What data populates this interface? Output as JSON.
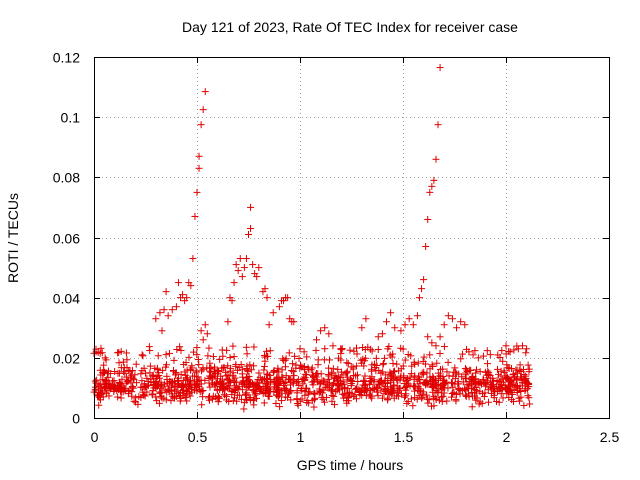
{
  "chart_data": {
    "type": "scatter",
    "title": "Day 121 of 2023, Rate Of TEC Index for receiver case",
    "xlabel": "GPS time / hours",
    "ylabel": "ROTI / TECUs",
    "xlim": [
      0,
      2.5
    ],
    "ylim": [
      0,
      0.12
    ],
    "xticks": [
      0,
      0.5,
      1,
      1.5,
      2,
      2.5
    ],
    "xtick_labels": [
      "0",
      "0.5",
      "1",
      "1.5",
      "2",
      "2.5"
    ],
    "yticks": [
      0,
      0.02,
      0.04,
      0.06,
      0.08,
      0.1,
      0.12
    ],
    "ytick_labels": [
      "0",
      "0.02",
      "0.04",
      "0.06",
      "0.08",
      "0.1",
      "0.12"
    ],
    "grid": true,
    "marker": "plus",
    "color": "#e00000",
    "series": [
      {
        "points": [
          [
            0.0,
            0.0215
          ],
          [
            0.01,
            0.022
          ],
          [
            0.02,
            0.0218
          ],
          [
            0.03,
            0.0215
          ],
          [
            0.04,
            0.0217
          ],
          [
            0.3,
            0.033
          ],
          [
            0.32,
            0.035
          ],
          [
            0.33,
            0.029
          ],
          [
            0.34,
            0.036
          ],
          [
            0.35,
            0.042
          ],
          [
            0.36,
            0.034
          ],
          [
            0.38,
            0.036
          ],
          [
            0.4,
            0.037
          ],
          [
            0.41,
            0.045
          ],
          [
            0.42,
            0.04
          ],
          [
            0.43,
            0.041
          ],
          [
            0.44,
            0.039
          ],
          [
            0.45,
            0.04
          ],
          [
            0.46,
            0.045
          ],
          [
            0.47,
            0.044
          ],
          [
            0.48,
            0.053
          ],
          [
            0.49,
            0.067
          ],
          [
            0.5,
            0.075
          ],
          [
            0.51,
            0.083
          ],
          [
            0.51,
            0.087
          ],
          [
            0.52,
            0.0975
          ],
          [
            0.53,
            0.1025
          ],
          [
            0.54,
            0.1085
          ],
          [
            0.52,
            0.029
          ],
          [
            0.53,
            0.026
          ],
          [
            0.54,
            0.031
          ],
          [
            0.55,
            0.028
          ],
          [
            0.65,
            0.032
          ],
          [
            0.66,
            0.04
          ],
          [
            0.67,
            0.039
          ],
          [
            0.68,
            0.045
          ],
          [
            0.69,
            0.051
          ],
          [
            0.7,
            0.049
          ],
          [
            0.71,
            0.053
          ],
          [
            0.72,
            0.047
          ],
          [
            0.73,
            0.05
          ],
          [
            0.74,
            0.053
          ],
          [
            0.75,
            0.061
          ],
          [
            0.76,
            0.063
          ],
          [
            0.76,
            0.07
          ],
          [
            0.77,
            0.051
          ],
          [
            0.78,
            0.048
          ],
          [
            0.79,
            0.047
          ],
          [
            0.8,
            0.05
          ],
          [
            0.82,
            0.042
          ],
          [
            0.83,
            0.043
          ],
          [
            0.84,
            0.04
          ],
          [
            0.85,
            0.031
          ],
          [
            0.87,
            0.035
          ],
          [
            0.9,
            0.037
          ],
          [
            0.91,
            0.039
          ],
          [
            0.92,
            0.039
          ],
          [
            0.93,
            0.04
          ],
          [
            0.94,
            0.04
          ],
          [
            0.95,
            0.033
          ],
          [
            0.96,
            0.032
          ],
          [
            0.97,
            0.032
          ],
          [
            1.0,
            0.023
          ],
          [
            1.02,
            0.022
          ],
          [
            1.08,
            0.026
          ],
          [
            1.1,
            0.029
          ],
          [
            1.12,
            0.03
          ],
          [
            1.14,
            0.028
          ],
          [
            1.16,
            0.024
          ],
          [
            1.3,
            0.03
          ],
          [
            1.32,
            0.033
          ],
          [
            1.38,
            0.027
          ],
          [
            1.4,
            0.028
          ],
          [
            1.42,
            0.032
          ],
          [
            1.44,
            0.035
          ],
          [
            1.46,
            0.03
          ],
          [
            1.49,
            0.029
          ],
          [
            1.51,
            0.031
          ],
          [
            1.53,
            0.033
          ],
          [
            1.55,
            0.031
          ],
          [
            1.57,
            0.034
          ],
          [
            1.58,
            0.04
          ],
          [
            1.59,
            0.043
          ],
          [
            1.6,
            0.046
          ],
          [
            1.61,
            0.057
          ],
          [
            1.62,
            0.066
          ],
          [
            1.63,
            0.075
          ],
          [
            1.64,
            0.077
          ],
          [
            1.65,
            0.079
          ],
          [
            1.66,
            0.086
          ],
          [
            1.67,
            0.0975
          ],
          [
            1.68,
            0.1165
          ],
          [
            1.62,
            0.027
          ],
          [
            1.64,
            0.025
          ],
          [
            1.66,
            0.024
          ],
          [
            1.68,
            0.027
          ],
          [
            1.7,
            0.031
          ],
          [
            1.72,
            0.034
          ],
          [
            1.74,
            0.033
          ],
          [
            1.76,
            0.03
          ],
          [
            1.78,
            0.032
          ],
          [
            1.8,
            0.031
          ],
          [
            1.82,
            0.022
          ],
          [
            1.84,
            0.021
          ],
          [
            2.0,
            0.024
          ],
          [
            2.02,
            0.022
          ],
          [
            2.06,
            0.023
          ],
          [
            2.08,
            0.024
          ],
          [
            2.1,
            0.023
          ]
        ],
        "band": {
          "x_range": [
            0.0,
            2.12
          ],
          "y_range": [
            0.003,
            0.024
          ],
          "typical": 0.011,
          "count": 1400
        }
      }
    ]
  }
}
